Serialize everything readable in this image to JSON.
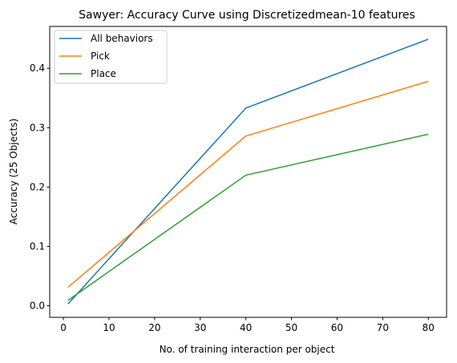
{
  "chart_data": {
    "type": "line",
    "title": "Sawyer: Accuracy Curve using Discretizedmean-10 features",
    "xlabel": "No. of training interaction per object",
    "ylabel": "Accuracy (25 Objects)",
    "x": [
      1,
      40,
      80
    ],
    "xlim": [
      -3.0,
      84.0
    ],
    "ylim": [
      -0.0195,
      0.4705
    ],
    "xticks": [
      0,
      10,
      20,
      30,
      40,
      50,
      60,
      70,
      80
    ],
    "yticks": [
      0.0,
      0.1,
      0.2,
      0.3,
      0.4
    ],
    "ytick_labels": [
      "0.0",
      "0.1",
      "0.2",
      "0.3",
      "0.4"
    ],
    "grid": false,
    "legend_position": "upper left",
    "series": [
      {
        "name": "All behaviors",
        "color": "#1f77b4",
        "values": [
          0.003,
          0.333,
          0.449
        ]
      },
      {
        "name": "Pick",
        "color": "#ff7f0e",
        "values": [
          0.031,
          0.286,
          0.378
        ]
      },
      {
        "name": "Place",
        "color": "#2ca02c",
        "values": [
          0.009,
          0.22,
          0.289
        ]
      }
    ]
  }
}
